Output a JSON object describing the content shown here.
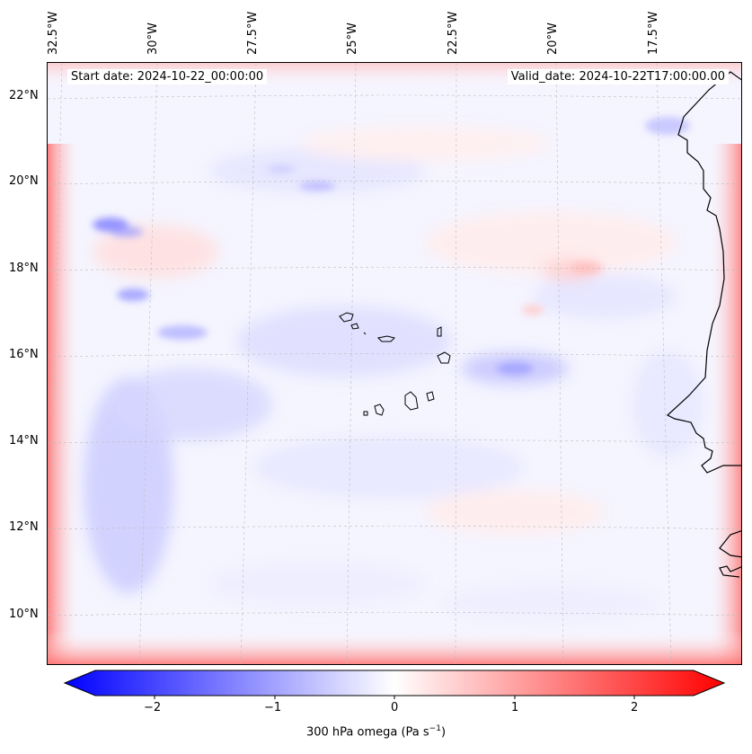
{
  "map": {
    "start_date": "Start date: 2024-10-22_00:00:00",
    "valid_date": "Valid_date: 2024-10-22T17:00:00.00",
    "lon_labels": [
      "32.5°W",
      "30°W",
      "27.5°W",
      "25°W",
      "22.5°W",
      "20°W",
      "17.5°W"
    ],
    "lat_labels": [
      "22°N",
      "20°N",
      "18°N",
      "16°N",
      "14°N",
      "12°N",
      "10°N"
    ]
  },
  "colorbar": {
    "title": "300 hPa omega (Pa s",
    "title_sup": "−1",
    "title_end": ")",
    "ticks": [
      "−2",
      "−1",
      "0",
      "1",
      "2"
    ],
    "min_value": -2.5,
    "max_value": 2.5,
    "colors": {
      "negative": "#0000ff",
      "zero": "#ffffff",
      "positive": "#ff0000"
    }
  }
}
